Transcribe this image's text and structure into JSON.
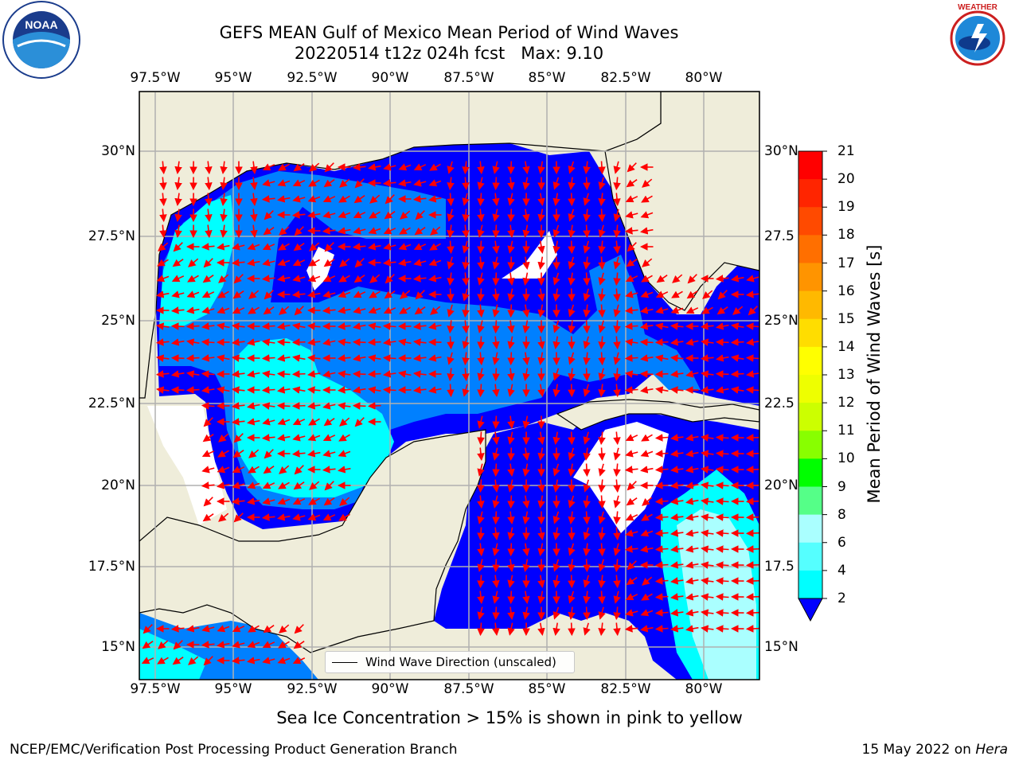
{
  "title": {
    "line1": "GEFS MEAN Gulf of Mexico Mean Period of Wind Waves",
    "line2": "20220514 t12z 024h fcst   Max: 9.10"
  },
  "map": {
    "lon_labels": [
      "97.5°W",
      "95°W",
      "92.5°W",
      "90°W",
      "87.5°W",
      "85°W",
      "82.5°W",
      "80°W"
    ],
    "lat_labels_left": [
      "30°N",
      "27.5°N",
      "25°N",
      "22.5°N",
      "20°N",
      "17.5°N",
      "15°N"
    ],
    "lat_labels_right": [
      "30°N",
      "27.5",
      "25°N",
      "22.5",
      "20°N",
      "17.5",
      "15°N"
    ],
    "legend_label": "Wind Wave Direction (unscaled)",
    "colors": {
      "land": "#efedda",
      "sea_2": "#0000ff",
      "sea_4": "#0080ff",
      "sea_6": "#00ffff",
      "sea_8": "#55ffff",
      "arrow": "#ff0000"
    }
  },
  "colorbar": {
    "ticks": [
      "21",
      "20",
      "19",
      "18",
      "17",
      "16",
      "15",
      "14",
      "13",
      "12",
      "11",
      "10",
      "9",
      "8",
      "6",
      "4",
      "2"
    ],
    "colors": [
      "#ff0000",
      "#ff2500",
      "#ff4a00",
      "#ff6f00",
      "#ff9400",
      "#ffb900",
      "#ffdd00",
      "#ffff00",
      "#eeff00",
      "#ccff00",
      "#88ff00",
      "#00ff00",
      "#55ff88",
      "#aaffff",
      "#55ffff",
      "#00ffff",
      "#0080ff"
    ],
    "label": "Mean Period of Wind Waves [s]"
  },
  "subtitle": "Sea Ice Concentration > 15% is shown in pink to yellow",
  "footer": {
    "left": "NCEP/EMC/Verification Post Processing Product Generation Branch",
    "right_date": "15 May 2022 on",
    "right_host": "Hera"
  },
  "logos": {
    "noaa": "NOAA",
    "noaa_ring": "NATIONAL OCEANIC AND ATMOSPHERIC ADMINISTRATION · U.S. DEPARTMENT OF COMMERCE",
    "nws_ring": "NATIONAL WEATHER SERVICE"
  }
}
